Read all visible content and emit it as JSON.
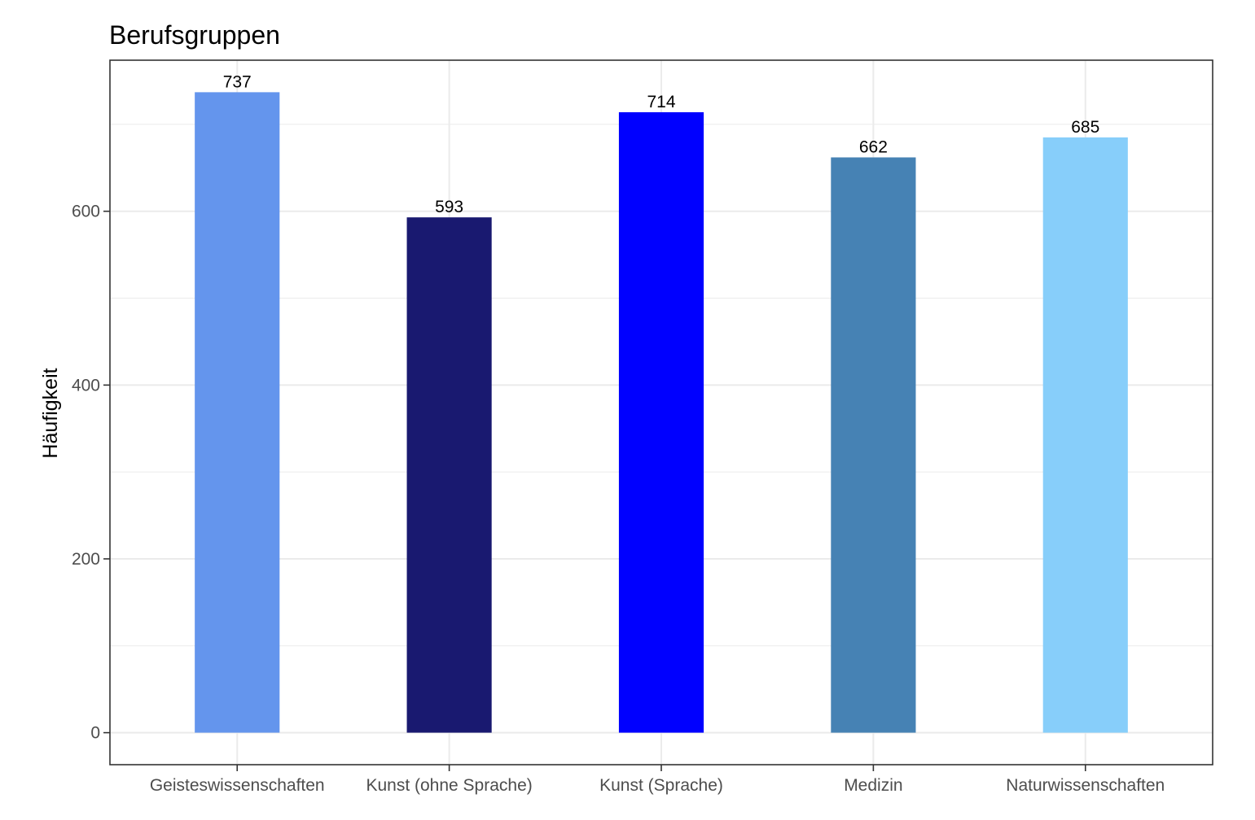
{
  "chart_data": {
    "type": "bar",
    "title": "Berufsgruppen",
    "xlabel": "",
    "ylabel": "Häufigkeit",
    "categories": [
      "Geisteswissenschaften",
      "Kunst (ohne Sprache)",
      "Kunst (Sprache)",
      "Medizin",
      "Naturwissenschaften"
    ],
    "values": [
      737,
      593,
      714,
      662,
      685
    ],
    "colors": [
      "#6495ED",
      "#191970",
      "#0000FF",
      "#4682B4",
      "#87CEFA"
    ],
    "ylim": [
      -36.85,
      773.85
    ],
    "yticks": [
      0,
      200,
      400,
      600
    ],
    "grid": true,
    "legend": "none",
    "panel_border_color": "#333333",
    "grid_color": "#ebebeb"
  }
}
